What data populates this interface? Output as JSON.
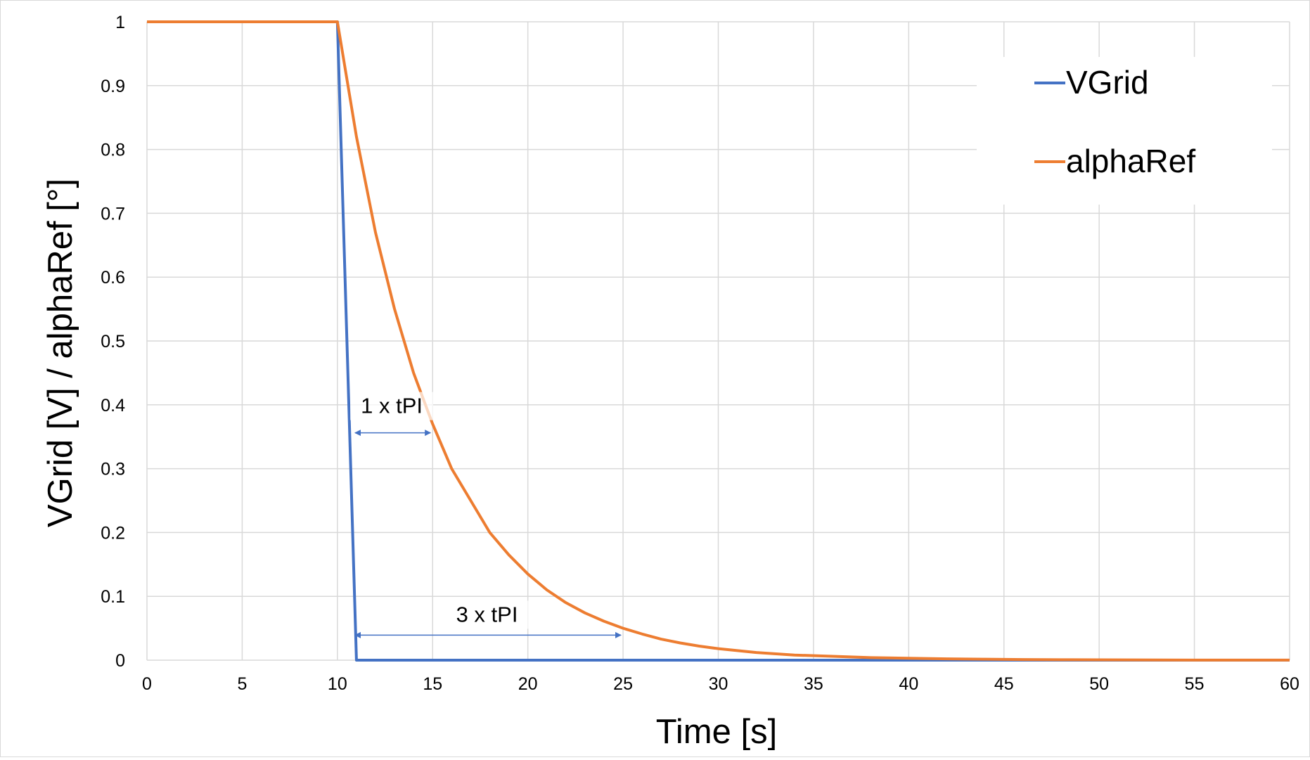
{
  "chart_data": {
    "type": "line",
    "title": "",
    "xlabel": "Time [s]",
    "ylabel": "VGrid [V] / alphaRef [°]",
    "xlim": [
      0,
      60
    ],
    "ylim": [
      0,
      1
    ],
    "x_ticks": [
      "0",
      "5",
      "10",
      "15",
      "20",
      "25",
      "30",
      "35",
      "40",
      "45",
      "50",
      "55",
      "60"
    ],
    "y_ticks": [
      "0",
      "0.1",
      "0.2",
      "0.3",
      "0.4",
      "0.5",
      "0.6",
      "0.7",
      "0.8",
      "0.9",
      "1"
    ],
    "grid": true,
    "legend_position": "top-right",
    "colors": {
      "VGrid": "#4472c4",
      "alphaRef": "#ed7d31",
      "grid": "#d9d9d9"
    },
    "series": [
      {
        "name": "VGrid",
        "color": "#4472c4",
        "x": [
          0,
          10,
          11,
          60
        ],
        "y": [
          1,
          1,
          0,
          0
        ]
      },
      {
        "name": "alphaRef",
        "color": "#ed7d31",
        "x": [
          0,
          10,
          11,
          12,
          13,
          14,
          15,
          16,
          17,
          18,
          19,
          20,
          21,
          22,
          23,
          24,
          25,
          26,
          27,
          28,
          29,
          30,
          32,
          34,
          36,
          38,
          40,
          42,
          44,
          46,
          48,
          50,
          55,
          60
        ],
        "y": [
          1,
          1,
          0.82,
          0.67,
          0.55,
          0.45,
          0.37,
          0.3,
          0.25,
          0.2,
          0.165,
          0.135,
          0.11,
          0.09,
          0.074,
          0.061,
          0.05,
          0.041,
          0.033,
          0.027,
          0.022,
          0.018,
          0.012,
          0.008,
          0.006,
          0.004,
          0.003,
          0.002,
          0.0015,
          0.001,
          0.0007,
          0.0005,
          0.0002,
          0.0001
        ]
      }
    ],
    "annotations": [
      {
        "text": "1 x tPI",
        "x_start": 11,
        "x_end": 15,
        "y": 0.365
      },
      {
        "text": "3 x tPI",
        "x_start": 11,
        "x_end": 25,
        "y": 0.048
      }
    ]
  }
}
